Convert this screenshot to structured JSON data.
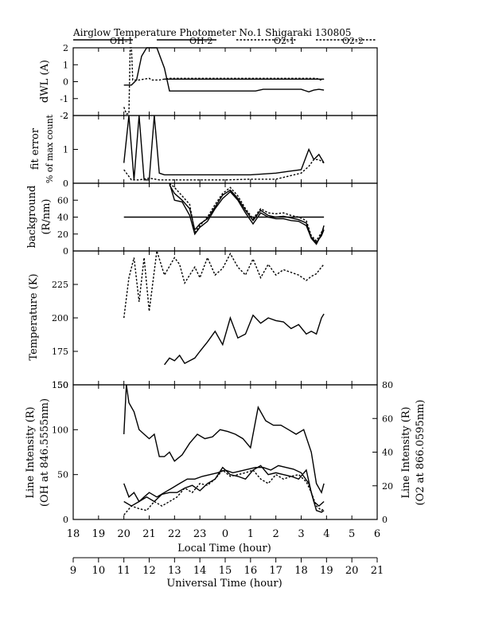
{
  "chart_data": {
    "type": "line",
    "title": "Airglow Temperature Photometer No.1 Shigaraki 130805",
    "legend": [
      "OH-1",
      "OH-2",
      "O2-1",
      "O2-2"
    ],
    "legend_position": "top",
    "x_local": {
      "label": "Local Time (hour)",
      "ticks": [
        "18",
        "19",
        "20",
        "21",
        "22",
        "23",
        "0",
        "1",
        "2",
        "3",
        "4",
        "5",
        "6"
      ]
    },
    "x_ut": {
      "label": "Universal Time (hour)",
      "ticks": [
        "9",
        "10",
        "11",
        "12",
        "13",
        "14",
        "15",
        "16",
        "17",
        "18",
        "19",
        "20",
        "21"
      ]
    },
    "x_range_ut": [
      9,
      21
    ],
    "panels": [
      {
        "id": "dwl",
        "ylabel": [
          "dWL (A)"
        ],
        "ylim": [
          -2,
          2
        ],
        "ticks": [
          "-2",
          "-1",
          "0",
          "1",
          "2"
        ],
        "series": [
          {
            "style": "dashed",
            "x": [
              11.0,
              11.1,
              11.2,
              11.25,
              11.3,
              11.35,
              11.6,
              11.8,
              12.0,
              12.1,
              12.2,
              12.4,
              12.6,
              12.8,
              13.5,
              15,
              17,
              18.6,
              18.75,
              18.9
            ],
            "y": [
              -1.5,
              -1.9,
              -1.9,
              2.0,
              2.0,
              0.1,
              0.1,
              0.15,
              0.2,
              0.1,
              0.1,
              0.1,
              0.15,
              0.2,
              0.2,
              0.2,
              0.2,
              0.2,
              0.1,
              0.15
            ]
          },
          {
            "style": "solid",
            "x": [
              11.0,
              11.3,
              11.5,
              11.7,
              11.9,
              12.0,
              12.3,
              12.6,
              12.8,
              13.0,
              15,
              16.2,
              16.5,
              18.0,
              18.3,
              18.5,
              18.7,
              18.9
            ],
            "y": [
              -0.2,
              -0.2,
              0.1,
              1.5,
              2.0,
              2.0,
              2.0,
              0.8,
              -0.55,
              -0.55,
              -0.55,
              -0.55,
              -0.45,
              -0.45,
              -0.6,
              -0.5,
              -0.45,
              -0.5
            ]
          },
          {
            "style": "solid",
            "x": [
              12.6,
              13.0,
              16.2,
              18.9
            ],
            "y": [
              0.15,
              0.15,
              0.15,
              0.15
            ]
          }
        ]
      },
      {
        "id": "fit",
        "ylabel": [
          "fit error",
          "% of max count"
        ],
        "ylim": [
          0,
          2
        ],
        "ticks": [
          "0",
          "1",
          "2"
        ],
        "series": [
          {
            "style": "solid",
            "x": [
              11.0,
              11.2,
              11.4,
              11.6,
              11.8,
              12.0,
              12.2,
              12.4,
              12.6,
              13,
              14,
              15,
              16,
              17,
              17.5,
              18.0,
              18.3,
              18.5,
              18.7,
              18.9
            ],
            "y": [
              0.6,
              2.0,
              0.1,
              2.0,
              0.1,
              0.1,
              2.0,
              0.3,
              0.25,
              0.25,
              0.25,
              0.25,
              0.25,
              0.3,
              0.35,
              0.4,
              1.0,
              0.7,
              0.85,
              0.6
            ]
          },
          {
            "style": "dashed",
            "x": [
              11.0,
              11.3,
              11.6,
              12.0,
              12.4,
              13,
              14,
              15,
              16,
              17,
              18,
              18.3,
              18.5,
              18.7,
              18.9
            ],
            "y": [
              0.4,
              0.1,
              0.1,
              0.15,
              0.1,
              0.1,
              0.1,
              0.1,
              0.12,
              0.12,
              0.3,
              0.5,
              0.7,
              0.7,
              0.6
            ]
          }
        ]
      },
      {
        "id": "bg",
        "ylabel": [
          "background",
          "(R/nm)"
        ],
        "ylim": [
          0,
          80
        ],
        "ticks": [
          "0",
          "20",
          "40",
          "60"
        ],
        "series": [
          {
            "style": "solid",
            "x": [
              11.0,
              12.5,
              13.0,
              14.0,
              15.0,
              16.0,
              17.0,
              18.0,
              18.9
            ],
            "y": [
              40,
              40,
              40,
              40,
              40,
              40,
              40,
              40,
              40
            ]
          },
          {
            "style": "solid",
            "x": [
              12.8,
              13.0,
              13.3,
              13.6,
              13.8,
              14.0,
              14.3,
              14.6,
              14.9,
              15.2,
              15.5,
              15.8,
              16.1,
              16.4,
              16.7,
              17.0,
              17.3,
              17.6,
              17.9,
              18.2,
              18.4,
              18.6,
              18.8,
              18.9
            ],
            "y": [
              80,
              60,
              58,
              42,
              20,
              28,
              35,
              50,
              62,
              70,
              60,
              45,
              32,
              45,
              40,
              38,
              38,
              36,
              35,
              30,
              15,
              8,
              20,
              30
            ]
          },
          {
            "style": "dashed",
            "x": [
              12.8,
              13.0,
              13.3,
              13.6,
              13.8,
              14.0,
              14.3,
              14.6,
              14.9,
              15.2,
              15.5,
              15.8,
              16.1,
              16.4,
              16.7,
              17.0,
              17.3,
              17.6,
              17.9,
              18.2,
              18.4,
              18.6,
              18.8,
              18.9
            ],
            "y": [
              80,
              75,
              65,
              55,
              22,
              30,
              40,
              55,
              68,
              75,
              65,
              50,
              38,
              50,
              45,
              44,
              45,
              42,
              40,
              36,
              18,
              12,
              22,
              28
            ]
          },
          {
            "style": "solid",
            "x": [
              12.8,
              13.0,
              13.3,
              13.6,
              13.8,
              14.0,
              14.3,
              14.6,
              14.9,
              15.2,
              15.5,
              15.8,
              16.1,
              16.4,
              16.7,
              17.0,
              17.3,
              17.6,
              17.9,
              18.2,
              18.4,
              18.6,
              18.8,
              18.9
            ],
            "y": [
              78,
              68,
              60,
              50,
              25,
              32,
              38,
              52,
              66,
              72,
              62,
              48,
              36,
              48,
              42,
              40,
              41,
              39,
              37,
              33,
              16,
              10,
              18,
              25
            ]
          }
        ]
      },
      {
        "id": "temp",
        "ylabel": [
          "Temperature (K)"
        ],
        "ylim": [
          150,
          250
        ],
        "ticks": [
          "150",
          "175",
          "200",
          "225"
        ],
        "series": [
          {
            "style": "dashed",
            "x": [
              11.0,
              11.2,
              11.4,
              11.6,
              11.8,
              12.0,
              12.3,
              12.6,
              13.0,
              13.2,
              13.4,
              13.6,
              13.8,
              14.0,
              14.3,
              14.6,
              14.9,
              15.2,
              15.5,
              15.8,
              16.1,
              16.4,
              16.7,
              17.0,
              17.3,
              17.6,
              17.9,
              18.2,
              18.4,
              18.6,
              18.8,
              18.9
            ],
            "y": [
              200,
              230,
              245,
              212,
              245,
              205,
              250,
              232,
              245,
              240,
              226,
              232,
              238,
              230,
              245,
              232,
              237,
              248,
              238,
              232,
              244,
              230,
              240,
              232,
              236,
              234,
              232,
              228,
              231,
              233,
              238,
              240
            ]
          },
          {
            "style": "solid",
            "x": [
              12.6,
              12.8,
              13.0,
              13.2,
              13.4,
              13.6,
              13.8,
              14.0,
              14.3,
              14.6,
              14.9,
              15.2,
              15.5,
              15.8,
              16.1,
              16.4,
              16.7,
              17.0,
              17.3,
              17.6,
              17.9,
              18.2,
              18.4,
              18.6,
              18.8,
              18.9
            ],
            "y": [
              165,
              170,
              168,
              172,
              166,
              168,
              170,
              175,
              182,
              190,
              180,
              200,
              185,
              188,
              202,
              196,
              200,
              198,
              197,
              192,
              195,
              188,
              190,
              188,
              200,
              203
            ]
          }
        ]
      },
      {
        "id": "int",
        "ylabel": [
          "Line Intensity (R)",
          "(OH at 846.5555nm)"
        ],
        "ylabel_right": [
          "Line Intensity (R)",
          "(O2 at 866.0595nm)"
        ],
        "ylim": [
          0,
          150
        ],
        "ticks": [
          "0",
          "50",
          "100",
          "150"
        ],
        "ylim_right": [
          0,
          80
        ],
        "ticks_right": [
          "0",
          "20",
          "40",
          "60",
          "80"
        ],
        "series": [
          {
            "style": "solid",
            "x": [
              11.0,
              11.1,
              11.2,
              11.4,
              11.6,
              11.8,
              12.0,
              12.2,
              12.4,
              12.6,
              12.8,
              13.0,
              13.3,
              13.6,
              13.9,
              14.2,
              14.5,
              14.8,
              15.1,
              15.4,
              15.7,
              16.0,
              16.3,
              16.6,
              16.9,
              17.2,
              17.5,
              17.8,
              18.1,
              18.4,
              18.6,
              18.8,
              18.9
            ],
            "y": [
              95,
              150,
              130,
              120,
              100,
              95,
              90,
              95,
              70,
              70,
              75,
              65,
              72,
              85,
              95,
              90,
              92,
              100,
              98,
              95,
              90,
              80,
              125,
              110,
              105,
              105,
              100,
              95,
              100,
              75,
              40,
              30,
              40
            ]
          },
          {
            "style": "solid",
            "x": [
              11.0,
              11.2,
              11.4,
              11.6,
              11.8,
              12.0,
              12.3,
              12.6,
              12.9,
              13.2,
              13.5,
              13.8,
              14.1,
              14.4,
              14.7,
              15.0,
              15.3,
              15.6,
              15.9,
              16.2,
              16.5,
              16.8,
              17.1,
              17.4,
              17.7,
              18.0,
              18.3,
              18.5,
              18.7,
              18.9
            ],
            "y": [
              40,
              25,
              30,
              20,
              25,
              30,
              25,
              30,
              35,
              40,
              45,
              45,
              48,
              50,
              52,
              55,
              52,
              54,
              56,
              58,
              58,
              55,
              60,
              58,
              56,
              52,
              40,
              20,
              15,
              20
            ]
          },
          {
            "style": "solid",
            "x": [
              11.0,
              11.3,
              11.6,
              11.9,
              12.2,
              12.5,
              12.8,
              13.1,
              13.4,
              13.7,
              14.0,
              14.3,
              14.6,
              14.9,
              15.2,
              15.5,
              15.8,
              16.1,
              16.4,
              16.7,
              17.0,
              17.3,
              17.6,
              17.9,
              18.2,
              18.4,
              18.6,
              18.8,
              18.9
            ],
            "y": [
              20,
              15,
              20,
              25,
              20,
              28,
              30,
              30,
              35,
              38,
              32,
              40,
              45,
              58,
              50,
              48,
              45,
              55,
              60,
              50,
              52,
              50,
              48,
              45,
              55,
              30,
              10,
              8,
              10
            ]
          },
          {
            "style": "dashed",
            "x": [
              11.0,
              11.3,
              11.6,
              11.9,
              12.2,
              12.5,
              12.8,
              13.1,
              13.4,
              13.7,
              14.0,
              14.3,
              14.6,
              14.9,
              15.2,
              15.5,
              15.8,
              16.1,
              16.4,
              16.7,
              17.0,
              17.3,
              17.6,
              17.9,
              18.2,
              18.4,
              18.6,
              18.8,
              18.9
            ],
            "y": [
              5,
              15,
              12,
              10,
              20,
              15,
              20,
              25,
              35,
              30,
              40,
              38,
              45,
              55,
              48,
              50,
              52,
              55,
              45,
              40,
              50,
              45,
              48,
              50,
              42,
              30,
              15,
              10,
              12
            ]
          }
        ]
      }
    ]
  }
}
